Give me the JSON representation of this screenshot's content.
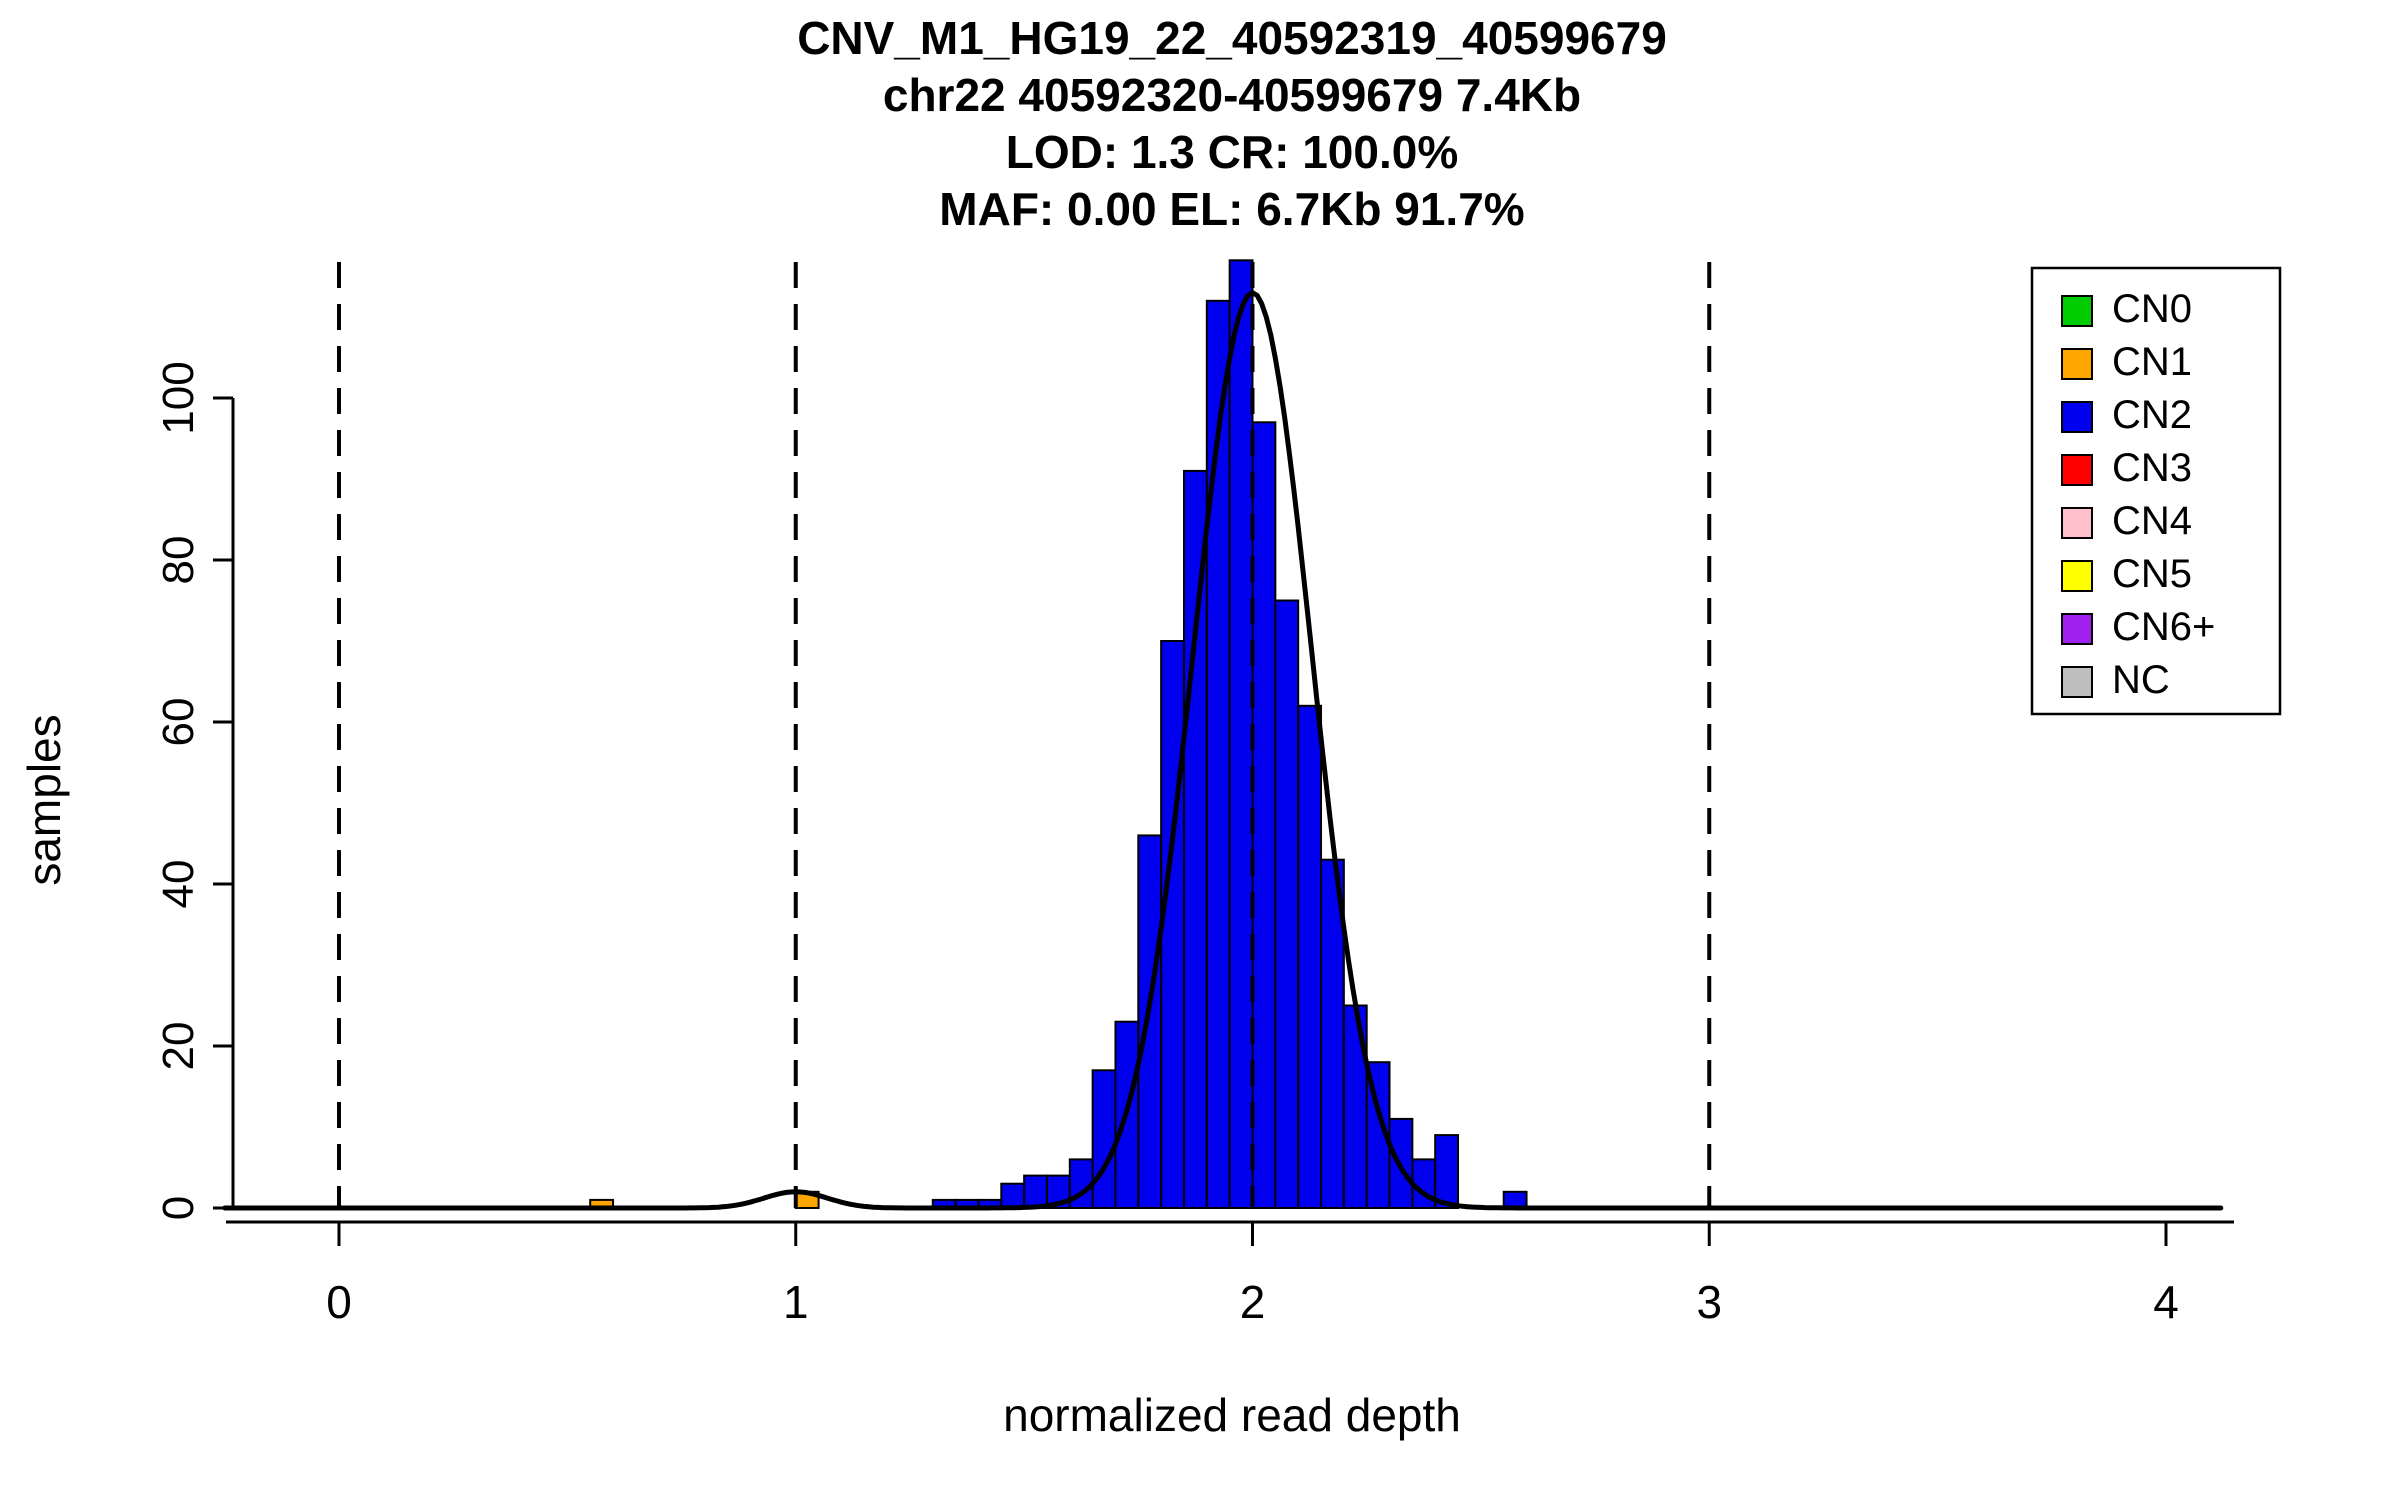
{
  "title_lines": [
    "CNV_M1_HG19_22_40592319_40599679",
    "chr22 40592320-40599679 7.4Kb",
    "LOD: 1.3 CR: 100.0%",
    "MAF: 0.00 EL: 6.7Kb 91.7%"
  ],
  "chart_data": {
    "type": "bar",
    "title": "CNV_M1_HG19_22_40592319_40599679",
    "subtitle_lines": [
      "chr22 40592320-40599679 7.4Kb",
      "LOD: 1.3 CR: 100.0%",
      "MAF: 0.00 EL: 6.7Kb 91.7%"
    ],
    "xlabel": "normalized read depth",
    "ylabel": "samples",
    "x_ticks": [
      0,
      1,
      2,
      3,
      4
    ],
    "y_ticks": [
      0,
      20,
      40,
      60,
      80,
      100
    ],
    "xlim": [
      -0.25,
      4.35
    ],
    "ylim": [
      0,
      117
    ],
    "bin_width": 0.05,
    "grid": "off",
    "dashed_vlines_x": [
      0,
      1,
      2,
      3
    ],
    "density_curve": {
      "span": [
        -0.25,
        4.12
      ],
      "components": [
        {
          "mean": 2.0,
          "sd": 0.13,
          "peak": 113
        },
        {
          "mean": 1.0,
          "sd": 0.07,
          "peak": 2
        }
      ]
    },
    "bars": [
      {
        "x": 0.55,
        "height": 1,
        "cn": "CN1"
      },
      {
        "x": 1.0,
        "height": 2,
        "cn": "CN1"
      },
      {
        "x": 1.3,
        "height": 1,
        "cn": "CN2"
      },
      {
        "x": 1.35,
        "height": 1,
        "cn": "CN2"
      },
      {
        "x": 1.4,
        "height": 1,
        "cn": "CN2"
      },
      {
        "x": 1.45,
        "height": 3,
        "cn": "CN2"
      },
      {
        "x": 1.5,
        "height": 4,
        "cn": "CN2"
      },
      {
        "x": 1.55,
        "height": 4,
        "cn": "CN2"
      },
      {
        "x": 1.6,
        "height": 6,
        "cn": "CN2"
      },
      {
        "x": 1.65,
        "height": 17,
        "cn": "CN2"
      },
      {
        "x": 1.7,
        "height": 23,
        "cn": "CN2"
      },
      {
        "x": 1.75,
        "height": 46,
        "cn": "CN2"
      },
      {
        "x": 1.8,
        "height": 70,
        "cn": "CN2"
      },
      {
        "x": 1.85,
        "height": 91,
        "cn": "CN2"
      },
      {
        "x": 1.9,
        "height": 112,
        "cn": "CN2"
      },
      {
        "x": 1.95,
        "height": 117,
        "cn": "CN2"
      },
      {
        "x": 2.0,
        "height": 97,
        "cn": "CN2"
      },
      {
        "x": 2.05,
        "height": 75,
        "cn": "CN2"
      },
      {
        "x": 2.1,
        "height": 62,
        "cn": "CN2"
      },
      {
        "x": 2.15,
        "height": 43,
        "cn": "CN2"
      },
      {
        "x": 2.2,
        "height": 25,
        "cn": "CN2"
      },
      {
        "x": 2.25,
        "height": 18,
        "cn": "CN2"
      },
      {
        "x": 2.3,
        "height": 11,
        "cn": "CN2"
      },
      {
        "x": 2.35,
        "height": 6,
        "cn": "CN2"
      },
      {
        "x": 2.4,
        "height": 9,
        "cn": "CN2"
      },
      {
        "x": 2.55,
        "height": 2,
        "cn": "CN2"
      }
    ],
    "colors": {
      "CN0": "#00CC00",
      "CN1": "#FFA500",
      "CN2": "#0000EE",
      "CN3": "#FF0000",
      "CN4": "#FFC0CB",
      "CN5": "#FFFF00",
      "CN6+": "#A020F0",
      "NC": "#BEBEBE",
      "curve": "#000000",
      "axis": "#000000"
    },
    "legend": {
      "position": "top-right",
      "entries": [
        "CN0",
        "CN1",
        "CN2",
        "CN3",
        "CN4",
        "CN5",
        "CN6+",
        "NC"
      ]
    }
  }
}
